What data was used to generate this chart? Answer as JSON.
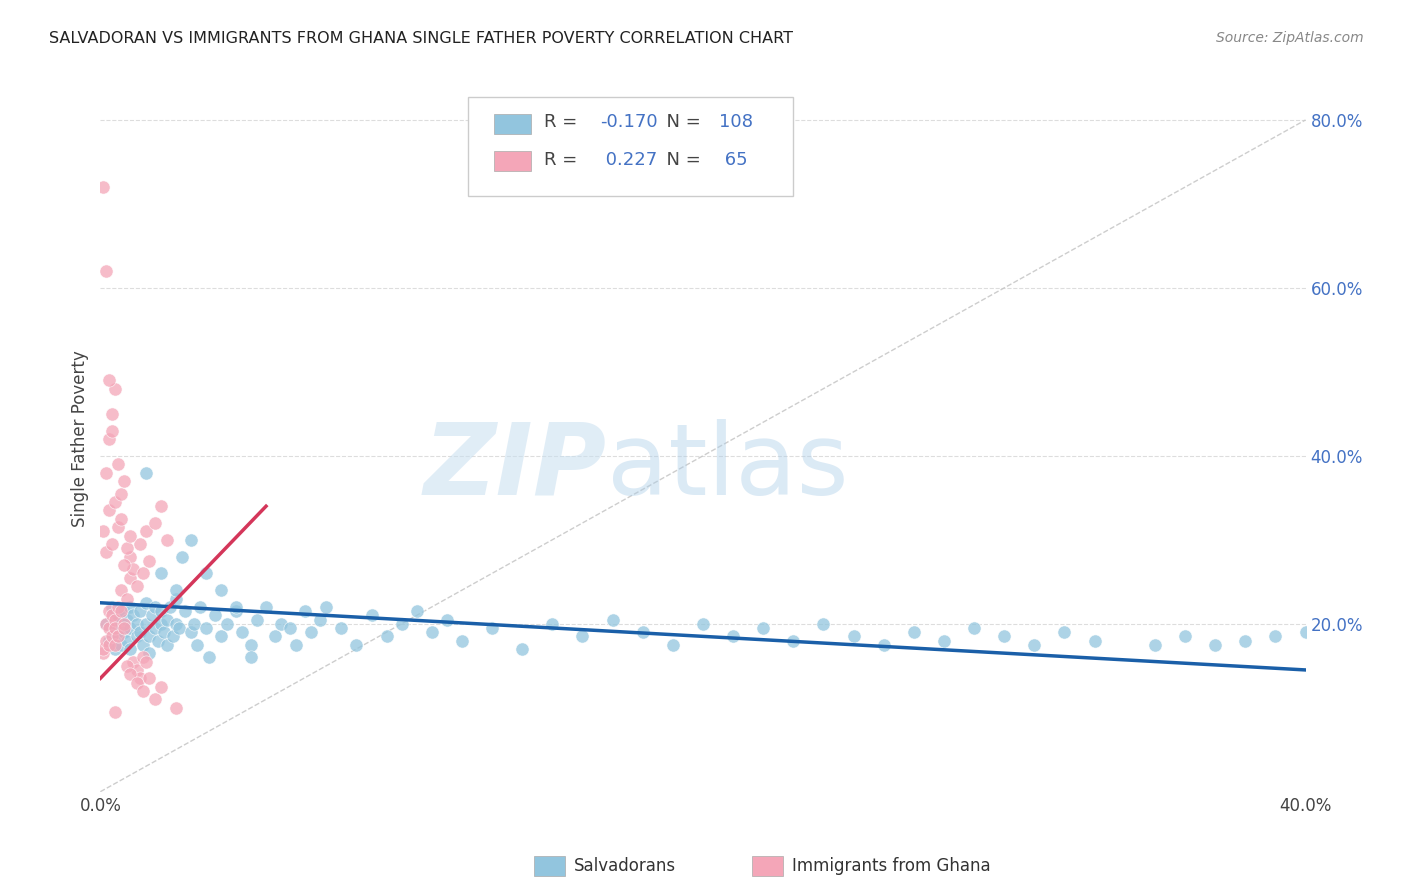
{
  "title": "SALVADORAN VS IMMIGRANTS FROM GHANA SINGLE FATHER POVERTY CORRELATION CHART",
  "source": "Source: ZipAtlas.com",
  "ylabel": "Single Father Poverty",
  "xlim": [
    0.0,
    0.4
  ],
  "ylim": [
    0.0,
    0.84
  ],
  "ytick_vals": [
    0.0,
    0.2,
    0.4,
    0.6,
    0.8
  ],
  "ytick_labels": [
    "",
    "20.0%",
    "40.0%",
    "60.0%",
    "80.0%"
  ],
  "xtick_vals": [
    0.0,
    0.4
  ],
  "xtick_labels": [
    "0.0%",
    "40.0%"
  ],
  "blue_color": "#92c5de",
  "pink_color": "#f4a6b8",
  "blue_line_color": "#1a5fa8",
  "pink_line_color": "#d4365a",
  "diagonal_color": "#c8c8c8",
  "tick_color": "#4472c4",
  "R_blue": -0.17,
  "N_blue": 108,
  "R_pink": 0.227,
  "N_pink": 65,
  "legend_label_blue": "Salvadorans",
  "legend_label_pink": "Immigrants from Ghana",
  "blue_line_x0": 0.0,
  "blue_line_y0": 0.225,
  "blue_line_x1": 0.4,
  "blue_line_y1": 0.145,
  "pink_line_x0": 0.0,
  "pink_line_y0": 0.135,
  "pink_line_x1": 0.055,
  "pink_line_y1": 0.34,
  "blue_scatter_x": [
    0.002,
    0.003,
    0.004,
    0.005,
    0.005,
    0.006,
    0.006,
    0.007,
    0.007,
    0.008,
    0.008,
    0.009,
    0.009,
    0.01,
    0.01,
    0.01,
    0.011,
    0.012,
    0.012,
    0.013,
    0.013,
    0.014,
    0.015,
    0.015,
    0.016,
    0.016,
    0.017,
    0.018,
    0.018,
    0.019,
    0.02,
    0.02,
    0.021,
    0.022,
    0.022,
    0.023,
    0.024,
    0.025,
    0.025,
    0.026,
    0.027,
    0.028,
    0.03,
    0.031,
    0.032,
    0.033,
    0.035,
    0.036,
    0.038,
    0.04,
    0.042,
    0.045,
    0.047,
    0.05,
    0.052,
    0.055,
    0.058,
    0.06,
    0.063,
    0.065,
    0.068,
    0.07,
    0.073,
    0.075,
    0.08,
    0.085,
    0.09,
    0.095,
    0.1,
    0.105,
    0.11,
    0.115,
    0.12,
    0.13,
    0.14,
    0.15,
    0.16,
    0.17,
    0.18,
    0.19,
    0.2,
    0.21,
    0.22,
    0.23,
    0.24,
    0.25,
    0.26,
    0.27,
    0.28,
    0.29,
    0.3,
    0.31,
    0.32,
    0.33,
    0.35,
    0.36,
    0.37,
    0.38,
    0.39,
    0.4,
    0.015,
    0.02,
    0.025,
    0.03,
    0.035,
    0.04,
    0.045,
    0.05
  ],
  "blue_scatter_y": [
    0.2,
    0.18,
    0.22,
    0.195,
    0.17,
    0.21,
    0.185,
    0.2,
    0.175,
    0.215,
    0.19,
    0.205,
    0.18,
    0.22,
    0.195,
    0.17,
    0.21,
    0.185,
    0.2,
    0.215,
    0.19,
    0.175,
    0.2,
    0.225,
    0.185,
    0.165,
    0.21,
    0.195,
    0.22,
    0.18,
    0.2,
    0.215,
    0.19,
    0.205,
    0.175,
    0.22,
    0.185,
    0.2,
    0.23,
    0.195,
    0.28,
    0.215,
    0.19,
    0.2,
    0.175,
    0.22,
    0.195,
    0.16,
    0.21,
    0.185,
    0.2,
    0.215,
    0.19,
    0.175,
    0.205,
    0.22,
    0.185,
    0.2,
    0.195,
    0.175,
    0.215,
    0.19,
    0.205,
    0.22,
    0.195,
    0.175,
    0.21,
    0.185,
    0.2,
    0.215,
    0.19,
    0.205,
    0.18,
    0.195,
    0.17,
    0.2,
    0.185,
    0.205,
    0.19,
    0.175,
    0.2,
    0.185,
    0.195,
    0.18,
    0.2,
    0.185,
    0.175,
    0.19,
    0.18,
    0.195,
    0.185,
    0.175,
    0.19,
    0.18,
    0.175,
    0.185,
    0.175,
    0.18,
    0.185,
    0.19,
    0.38,
    0.26,
    0.24,
    0.3,
    0.26,
    0.24,
    0.22,
    0.16
  ],
  "pink_scatter_x": [
    0.001,
    0.001,
    0.002,
    0.002,
    0.003,
    0.003,
    0.003,
    0.004,
    0.004,
    0.005,
    0.005,
    0.005,
    0.006,
    0.006,
    0.007,
    0.007,
    0.008,
    0.008,
    0.009,
    0.01,
    0.01,
    0.011,
    0.012,
    0.013,
    0.014,
    0.015,
    0.016,
    0.018,
    0.02,
    0.022,
    0.001,
    0.002,
    0.003,
    0.004,
    0.005,
    0.006,
    0.007,
    0.008,
    0.009,
    0.01,
    0.011,
    0.012,
    0.013,
    0.014,
    0.015,
    0.002,
    0.003,
    0.004,
    0.005,
    0.006,
    0.007,
    0.008,
    0.009,
    0.01,
    0.012,
    0.014,
    0.016,
    0.018,
    0.02,
    0.025,
    0.001,
    0.002,
    0.003,
    0.004,
    0.005
  ],
  "pink_scatter_y": [
    0.165,
    0.17,
    0.2,
    0.18,
    0.195,
    0.215,
    0.175,
    0.21,
    0.185,
    0.205,
    0.195,
    0.175,
    0.22,
    0.185,
    0.24,
    0.215,
    0.2,
    0.195,
    0.23,
    0.255,
    0.28,
    0.265,
    0.245,
    0.295,
    0.26,
    0.31,
    0.275,
    0.32,
    0.34,
    0.3,
    0.31,
    0.285,
    0.335,
    0.295,
    0.345,
    0.315,
    0.325,
    0.27,
    0.29,
    0.305,
    0.155,
    0.145,
    0.135,
    0.16,
    0.155,
    0.38,
    0.42,
    0.45,
    0.48,
    0.39,
    0.355,
    0.37,
    0.15,
    0.14,
    0.13,
    0.12,
    0.135,
    0.11,
    0.125,
    0.1,
    0.72,
    0.62,
    0.49,
    0.43,
    0.095
  ]
}
